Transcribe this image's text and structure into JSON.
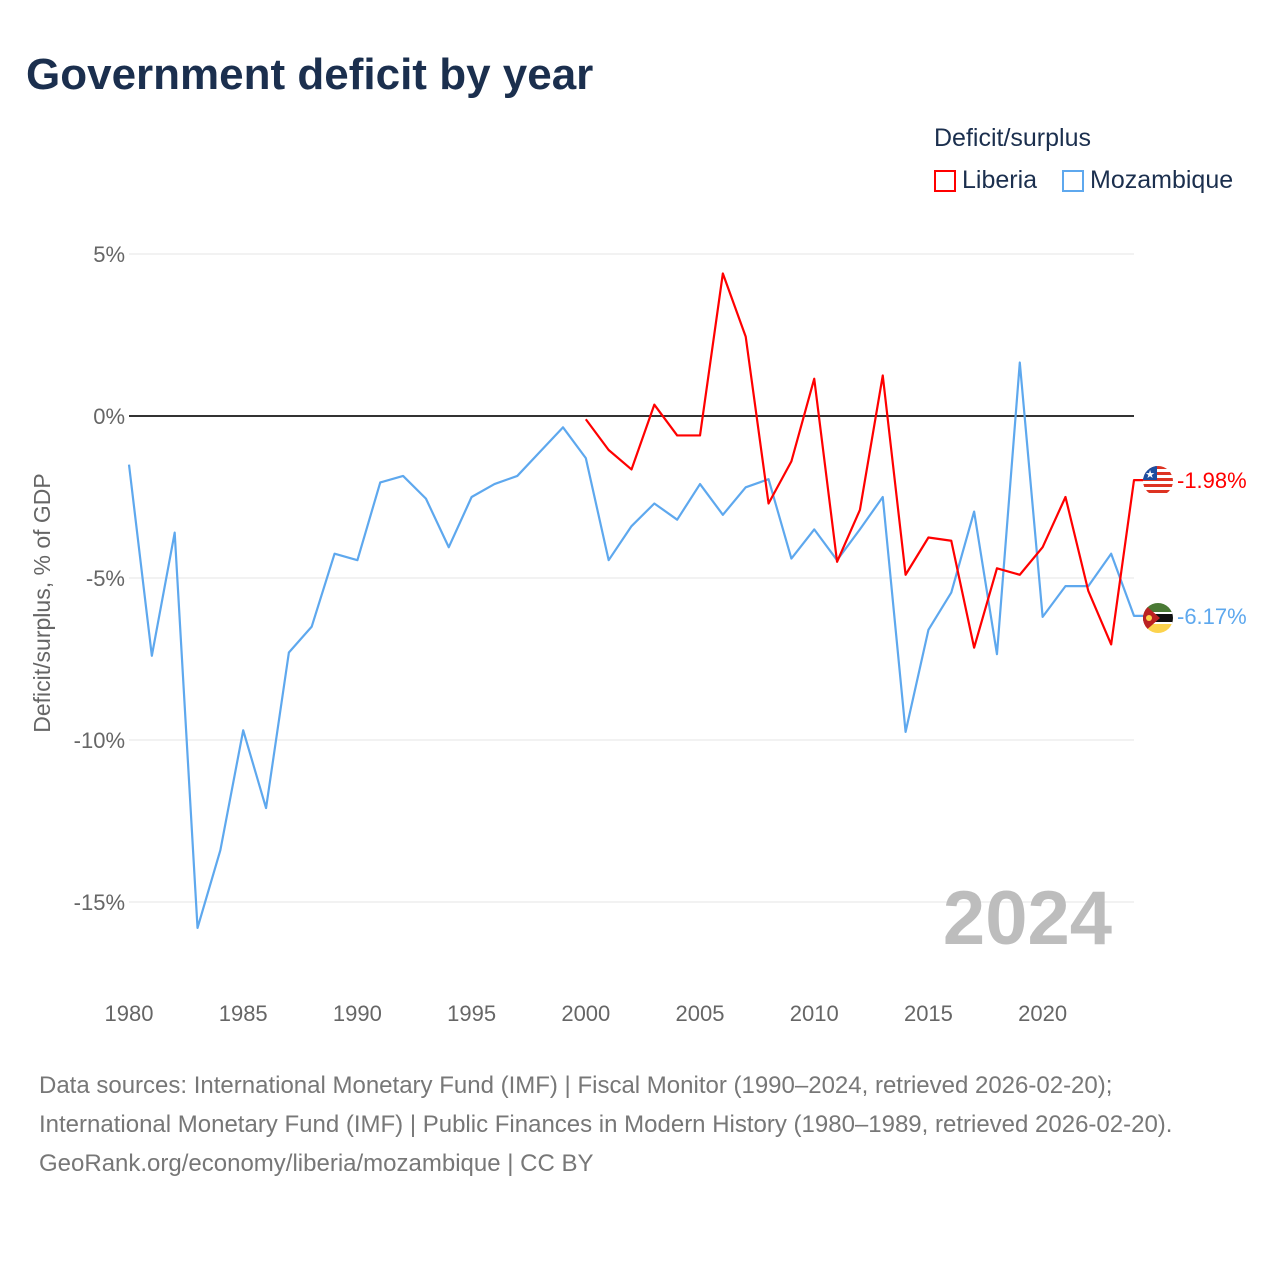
{
  "title": "Government deficit by year",
  "legend_title": "Deficit/surplus",
  "footer": {
    "sources": "Data sources: International Monetary Fund (IMF) | Fiscal Monitor (1990–2024, retrieved 2026-02-20); International Monetary Fund (IMF) | Public Finances in Modern History (1980–1989, retrieved 2026-02-20).",
    "credit": "GeoRank.org/economy/liberia/mozambique | CC BY"
  },
  "chart_data": {
    "type": "line",
    "title": "Government deficit by year",
    "xlabel": "",
    "ylabel": "Deficit/surplus, % of GDP",
    "xlim": [
      1980,
      2024
    ],
    "ylim": [
      -15,
      5
    ],
    "yticks": [
      5,
      0,
      -5,
      -10,
      -15
    ],
    "ytick_labels": [
      "5%",
      "0%",
      "-5%",
      "-10%",
      "-15%"
    ],
    "xticks": [
      "1980",
      "1985",
      "1990",
      "1995",
      "2000",
      "2005",
      "2010",
      "2015",
      "2020"
    ],
    "year_label": "2024",
    "legend_placement": "top-right",
    "series": [
      {
        "name": "Liberia",
        "color": "#ff0000",
        "end_label": "-1.98%",
        "x": [
          2000,
          2001,
          2002,
          2003,
          2004,
          2005,
          2006,
          2007,
          2008,
          2009,
          2010,
          2011,
          2012,
          2013,
          2014,
          2015,
          2016,
          2017,
          2018,
          2019,
          2020,
          2021,
          2022,
          2023,
          2024
        ],
        "values": [
          -0.1,
          -1.05,
          -1.65,
          0.35,
          -0.6,
          -0.6,
          4.4,
          2.45,
          -2.7,
          -1.4,
          1.15,
          -4.5,
          -2.9,
          1.25,
          -4.9,
          -3.75,
          -3.85,
          -7.15,
          -4.7,
          -4.9,
          -4.05,
          -2.5,
          -5.4,
          -7.05,
          -1.98
        ]
      },
      {
        "name": "Mozambique",
        "color": "#5ea8ee",
        "end_label": "-6.17%",
        "x": [
          1980,
          1981,
          1982,
          1983,
          1984,
          1985,
          1986,
          1987,
          1988,
          1989,
          1990,
          1991,
          1992,
          1993,
          1994,
          1995,
          1996,
          1997,
          1998,
          1999,
          2000,
          2001,
          2002,
          2003,
          2004,
          2005,
          2006,
          2007,
          2008,
          2009,
          2010,
          2011,
          2012,
          2013,
          2014,
          2015,
          2016,
          2017,
          2018,
          2019,
          2020,
          2021,
          2022,
          2023,
          2024
        ],
        "values": [
          -1.5,
          -7.4,
          -3.6,
          -15.8,
          -13.4,
          -9.7,
          -12.1,
          -7.3,
          -6.5,
          -4.25,
          -4.45,
          -2.05,
          -1.85,
          -2.55,
          -4.05,
          -2.5,
          -2.1,
          -1.85,
          -1.1,
          -0.35,
          -1.3,
          -4.45,
          -3.4,
          -2.7,
          -3.2,
          -2.1,
          -3.05,
          -2.2,
          -1.95,
          -4.4,
          -3.5,
          -4.45,
          -3.5,
          -2.5,
          -9.75,
          -6.6,
          -5.45,
          -2.95,
          -7.35,
          1.65,
          -6.2,
          -5.25,
          -5.25,
          -4.25,
          -6.17
        ]
      }
    ]
  }
}
